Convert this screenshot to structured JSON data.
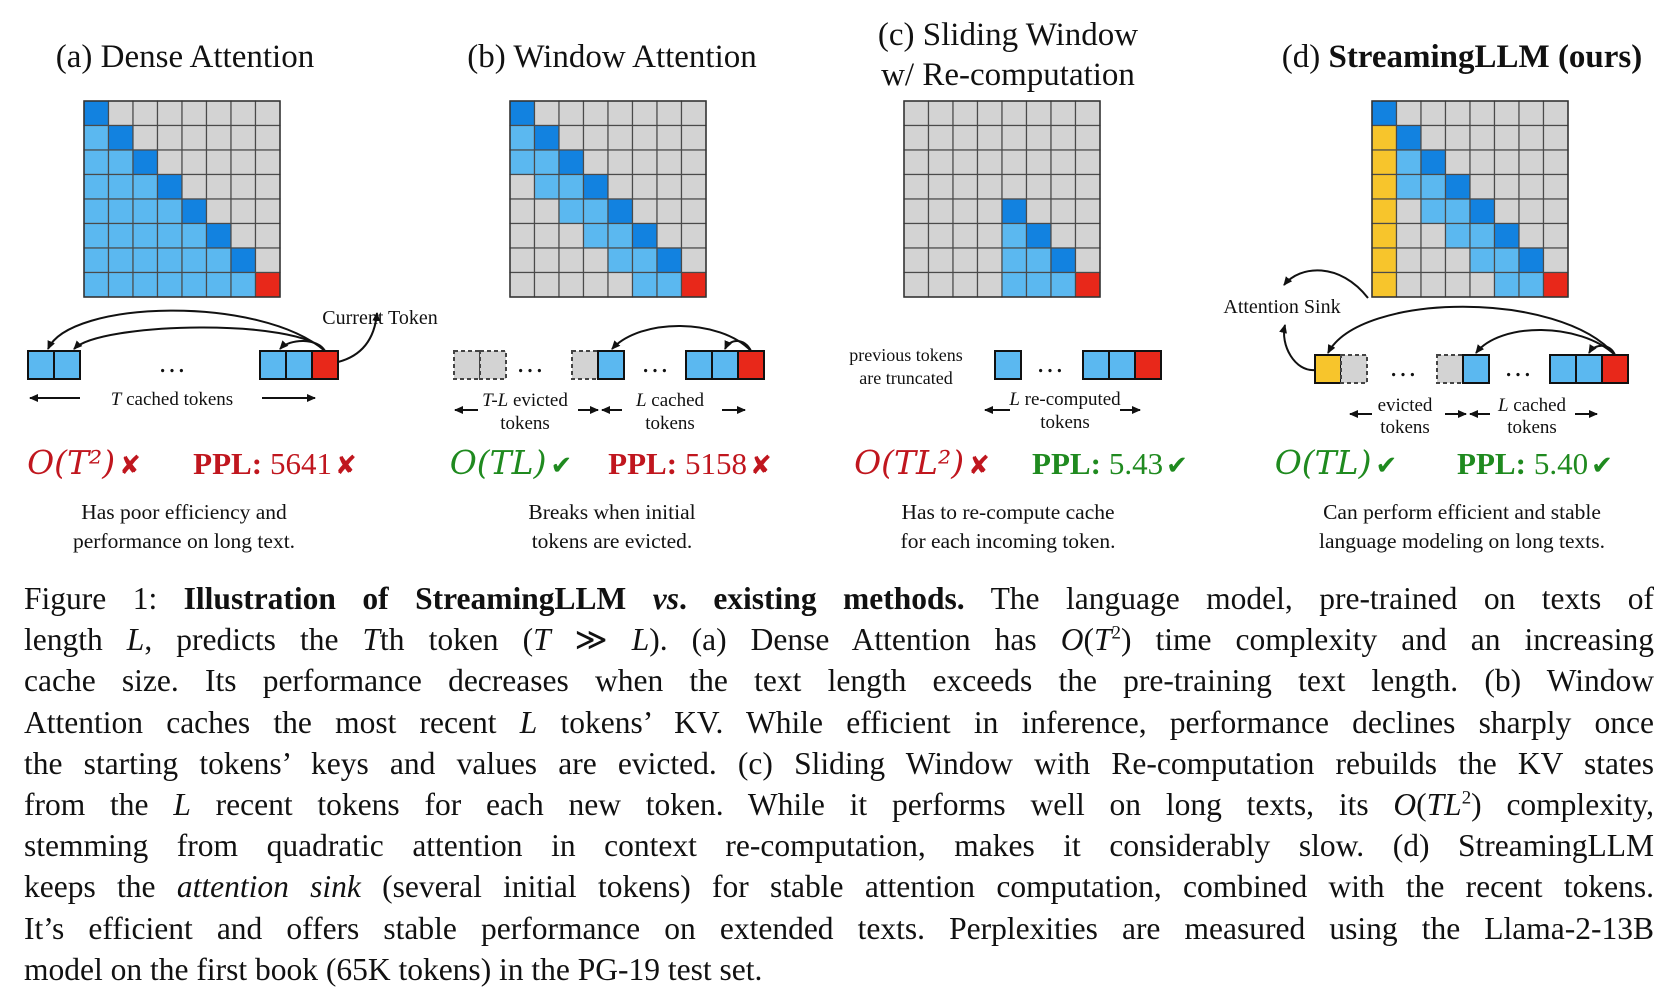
{
  "colors": {
    "grid_gray": "#d3d3d3",
    "light_blue": "#5bb8f0",
    "dark_blue": "#1282e0",
    "red": "#e8281a",
    "yellow": "#f7c52c",
    "bad_red": "#c0161e",
    "good_green": "#1f8a1f"
  },
  "panels": [
    {
      "id": "a",
      "title_lines": [
        "(a) Dense Attention"
      ],
      "title_bold": "",
      "pattern": "dense",
      "token_label": "T cached tokens",
      "extra_label": "Current Token",
      "complexity": "O(T²)",
      "complexity_ok": false,
      "ppl_label": "PPL:",
      "ppl_value": "5641",
      "ppl_ok": false,
      "desc_lines": [
        "Has poor efficiency and",
        "performance on long text."
      ]
    },
    {
      "id": "b",
      "title_lines": [
        "(b) Window Attention"
      ],
      "title_bold": "",
      "pattern": "window",
      "evicted_label": [
        "T-L evicted",
        "tokens"
      ],
      "token_label_lines": [
        "L cached",
        "tokens"
      ],
      "complexity": "O(TL)",
      "complexity_ok": true,
      "ppl_label": "PPL:",
      "ppl_value": "5158",
      "ppl_ok": false,
      "desc_lines": [
        "Breaks when initial",
        "tokens are evicted."
      ]
    },
    {
      "id": "c",
      "title_lines": [
        "(c) Sliding Window",
        "w/ Re-computation"
      ],
      "title_bold": "",
      "pattern": "sliding",
      "side_label": [
        "previous tokens",
        "are truncated"
      ],
      "token_label_lines": [
        "L re-computed",
        "tokens"
      ],
      "complexity": "O(TL²)",
      "complexity_ok": false,
      "ppl_label": "PPL:",
      "ppl_value": "5.43",
      "ppl_ok": true,
      "desc_lines": [
        "Has to re-compute cache",
        "for each incoming token."
      ]
    },
    {
      "id": "d",
      "title_lines": [
        "(d) "
      ],
      "title_bold": "StreamingLLM (ours)",
      "pattern": "streaming",
      "sink_label": "Attention Sink",
      "evicted_label": [
        "evicted",
        "tokens"
      ],
      "token_label_lines": [
        "L cached",
        "tokens"
      ],
      "complexity": "O(TL)",
      "complexity_ok": true,
      "ppl_label": "PPL:",
      "ppl_value": "5.40",
      "ppl_ok": true,
      "desc_lines": [
        "Can perform efficient and stable",
        "language modeling on long texts."
      ]
    }
  ],
  "caption": {
    "lines": [
      "Figure 1: <b>Illustration of StreamingLLM <i>vs</i>. existing methods.</b> The language model, pre-trained on texts of",
      "length <i>L</i>, predicts the <i>T</i>th token (<i>T</i> ≫ <i>L</i>). (a) Dense Attention has <i>O</i>(<i>T</i><sup>2</sup>) time complexity and an increasing",
      "cache size. Its performance decreases when the text length exceeds the pre-training text length. (b) Window",
      "Attention caches the most recent <i>L</i> tokens’ KV. While efficient in inference, performance declines sharply once",
      "the starting tokens’ keys and values are evicted. (c) Sliding Window with Re-computation rebuilds the KV states",
      "from the <i>L</i> recent tokens for each new token. While it performs well on long texts, its <i>O</i>(<i>TL</i><sup>2</sup>) complexity,",
      "stemming from quadratic attention in context re-computation, makes it considerably slow. (d) StreamingLLM",
      "keeps the <i>attention sink</i> (several initial tokens) for stable attention computation, combined with the recent tokens.",
      "It’s efficient and offers stable performance on extended texts. Perplexities are measured using the Llama-2-13B",
      "model on the first book (65K tokens) in the PG-19 test set."
    ]
  }
}
